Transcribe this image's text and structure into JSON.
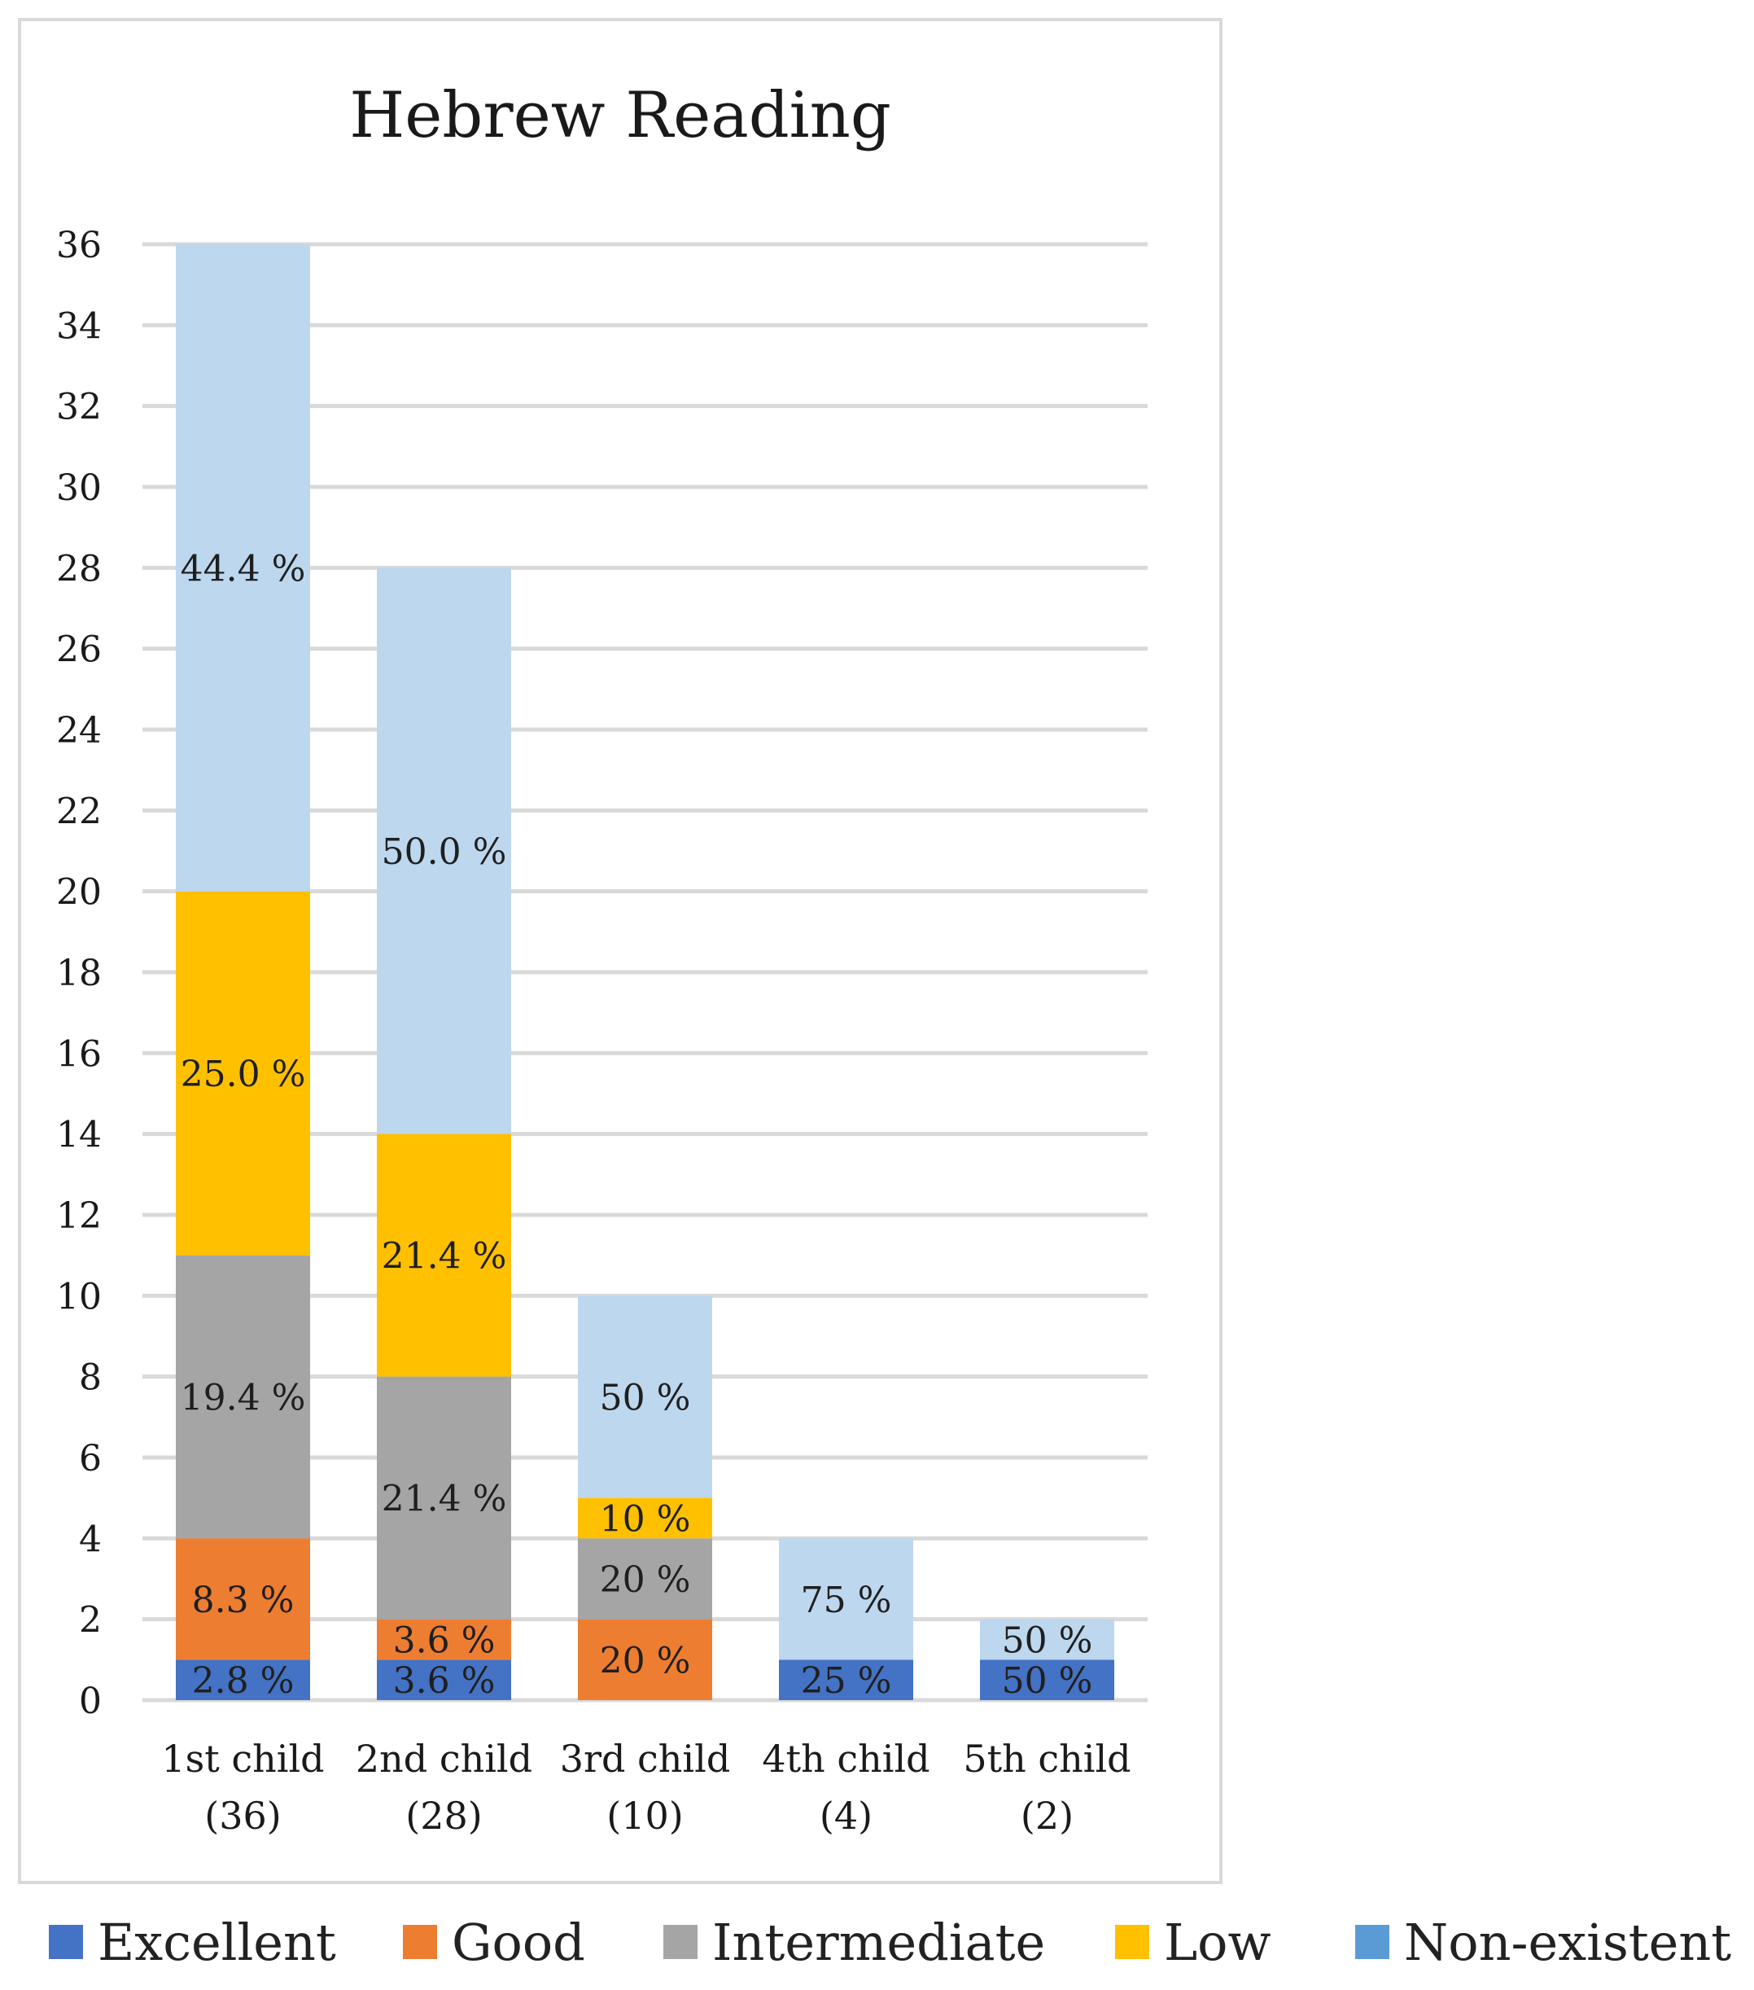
{
  "chart_data": {
    "type": "bar",
    "stacked": true,
    "title": "Hebrew Reading",
    "xlabel": "",
    "ylabel": "",
    "ylim": [
      0,
      36
    ],
    "yticks": [
      0,
      2,
      4,
      6,
      8,
      10,
      12,
      14,
      16,
      18,
      20,
      22,
      24,
      26,
      28,
      30,
      32,
      34,
      36
    ],
    "grid": true,
    "legend_position": "bottom",
    "categories": [
      [
        "1st child",
        "(36)"
      ],
      [
        "2nd child",
        "(28)"
      ],
      [
        "3rd child",
        "(10)"
      ],
      [
        "4th child",
        "(4)"
      ],
      [
        "5th child",
        "(2)"
      ]
    ],
    "series": [
      {
        "name": "Excellent",
        "color": "#4472c4",
        "values": [
          1,
          1,
          0,
          1,
          1
        ],
        "labels": [
          "2.8 %",
          "3.6 %",
          "",
          "25 %",
          "50 %"
        ],
        "label_color": "#1f1f1f"
      },
      {
        "name": "Good",
        "color": "#ed7d31",
        "values": [
          3,
          1,
          2,
          0,
          0
        ],
        "labels": [
          "8.3 %",
          "3.6 %",
          "20 %",
          "",
          ""
        ],
        "label_color": "#1f1f1f"
      },
      {
        "name": "Intermediate",
        "color": "#a5a5a5",
        "values": [
          7,
          6,
          2,
          0,
          0
        ],
        "labels": [
          "19.4 %",
          "21.4 %",
          "20 %",
          "",
          ""
        ],
        "label_color": "#1f1f1f"
      },
      {
        "name": "Low",
        "color": "#ffc000",
        "values": [
          9,
          6,
          1,
          0,
          0
        ],
        "labels": [
          "25.0 %",
          "21.4 %",
          "10 %",
          "",
          ""
        ],
        "label_color": "#1f1f1f"
      },
      {
        "name": "Non-existent",
        "color": "#bdd7ee",
        "legend_color": "#5b9bd5",
        "values": [
          16,
          14,
          5,
          3,
          1
        ],
        "labels": [
          "44.4 %",
          "50.0 %",
          "50 %",
          "75 %",
          "50 %"
        ],
        "label_color": "#1f1f1f"
      }
    ]
  }
}
